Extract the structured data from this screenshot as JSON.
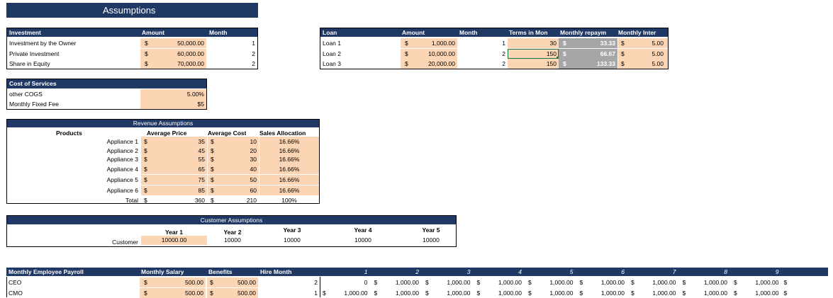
{
  "title": "Assumptions",
  "investment": {
    "headers": [
      "Investment",
      "Amount",
      "Month"
    ],
    "rows": [
      {
        "label": "Investment by the Owner",
        "cur": "$",
        "amount": "50,000.00",
        "month": "1"
      },
      {
        "label": "Private Investment",
        "cur": "$",
        "amount": "60,000.00",
        "month": "2"
      },
      {
        "label": "Share in Equity",
        "cur": "$",
        "amount": "70,000.00",
        "month": "2"
      }
    ]
  },
  "loan": {
    "headers": [
      "Loan",
      "Amount",
      "Month",
      "Terms in Mon",
      "Monthly repaym",
      "Monthly Inter"
    ],
    "rows": [
      {
        "label": "Loan 1",
        "cur": "$",
        "amount": "1,000.00",
        "month": "1",
        "terms": "30",
        "rcur": "$",
        "repay": "33.33",
        "icur": "$",
        "interest": "5.00"
      },
      {
        "label": "Loan 2",
        "cur": "$",
        "amount": "10,000.00",
        "month": "2",
        "terms": "150",
        "rcur": "$",
        "repay": "66.67",
        "icur": "$",
        "interest": "5.00"
      },
      {
        "label": "Loan 3",
        "cur": "$",
        "amount": "20,000.00",
        "month": "2",
        "terms": "150",
        "rcur": "$",
        "repay": "133.33",
        "icur": "$",
        "interest": "5.00"
      }
    ]
  },
  "cos": {
    "header": "Cost of Services",
    "rows": [
      {
        "label": "other COGS",
        "value": "5.00%"
      },
      {
        "label": "Monthly Fixed Fee",
        "value": "$5"
      }
    ]
  },
  "revenue": {
    "title": "Revenue Assumptions",
    "headers": [
      "Products",
      "Average Price",
      "Average Cost",
      "Sales Allocation"
    ],
    "rows": [
      {
        "name": "Appliance 1",
        "pcur": "$",
        "price": "35",
        "ccur": "$",
        "cost": "10",
        "alloc": "16.66%"
      },
      {
        "name": "Appliance 2",
        "pcur": "$",
        "price": "45",
        "ccur": "$",
        "cost": "20",
        "alloc": "16.66%"
      },
      {
        "name": "Appliance 3",
        "pcur": "$",
        "price": "55",
        "ccur": "$",
        "cost": "30",
        "alloc": "16.66%"
      },
      {
        "name": "Appliance 4",
        "pcur": "$",
        "price": "65",
        "ccur": "$",
        "cost": "40",
        "alloc": "16.66%"
      },
      {
        "name": "Appliance 5",
        "pcur": "$",
        "price": "75",
        "ccur": "$",
        "cost": "50",
        "alloc": "16.66%"
      },
      {
        "name": "Appliance 6",
        "pcur": "$",
        "price": "85",
        "ccur": "$",
        "cost": "60",
        "alloc": "16.66%"
      }
    ],
    "total": {
      "name": "Total",
      "pcur": "$",
      "price": "360",
      "ccur": "$",
      "cost": "210",
      "alloc": "100%"
    }
  },
  "customer": {
    "title": "Customer Assumptions",
    "years": [
      "Year 1",
      "Year 2",
      "Year 3",
      "Year 4",
      "Year 5"
    ],
    "label": "Customer",
    "values": [
      "10000.00",
      "10000",
      "10000",
      "10000",
      "10000"
    ]
  },
  "payroll": {
    "headers": [
      "Monthly Employee Payroll",
      "Monthly Salary",
      "Benefits",
      "Hire Month"
    ],
    "months": [
      "1",
      "2",
      "3",
      "4",
      "5",
      "6",
      "7",
      "8",
      "9"
    ],
    "rows": [
      {
        "role": "CEO",
        "scur": "$",
        "salary": "500.00",
        "bcur": "$",
        "benefits": "500.00",
        "hire": "2",
        "cells": [
          {
            "cur": "",
            "val": "0"
          },
          {
            "cur": "$",
            "val": "1,000.00"
          },
          {
            "cur": "$",
            "val": "1,000.00"
          },
          {
            "cur": "$",
            "val": "1,000.00"
          },
          {
            "cur": "$",
            "val": "1,000.00"
          },
          {
            "cur": "$",
            "val": "1,000.00"
          },
          {
            "cur": "$",
            "val": "1,000.00"
          },
          {
            "cur": "$",
            "val": "1,000.00"
          },
          {
            "cur": "$",
            "val": "1,000.00"
          }
        ],
        "trail": "$"
      },
      {
        "role": "CMO",
        "scur": "$",
        "salary": "500.00",
        "bcur": "$",
        "benefits": "500.00",
        "hire": "1",
        "cells": [
          {
            "cur": "$",
            "val": "1,000.00"
          },
          {
            "cur": "$",
            "val": "1,000.00"
          },
          {
            "cur": "$",
            "val": "1,000.00"
          },
          {
            "cur": "$",
            "val": "1,000.00"
          },
          {
            "cur": "$",
            "val": "1,000.00"
          },
          {
            "cur": "$",
            "val": "1,000.00"
          },
          {
            "cur": "$",
            "val": "1,000.00"
          },
          {
            "cur": "$",
            "val": "1,000.00"
          },
          {
            "cur": "$",
            "val": "1,000.00"
          }
        ],
        "trail": "$"
      }
    ]
  }
}
